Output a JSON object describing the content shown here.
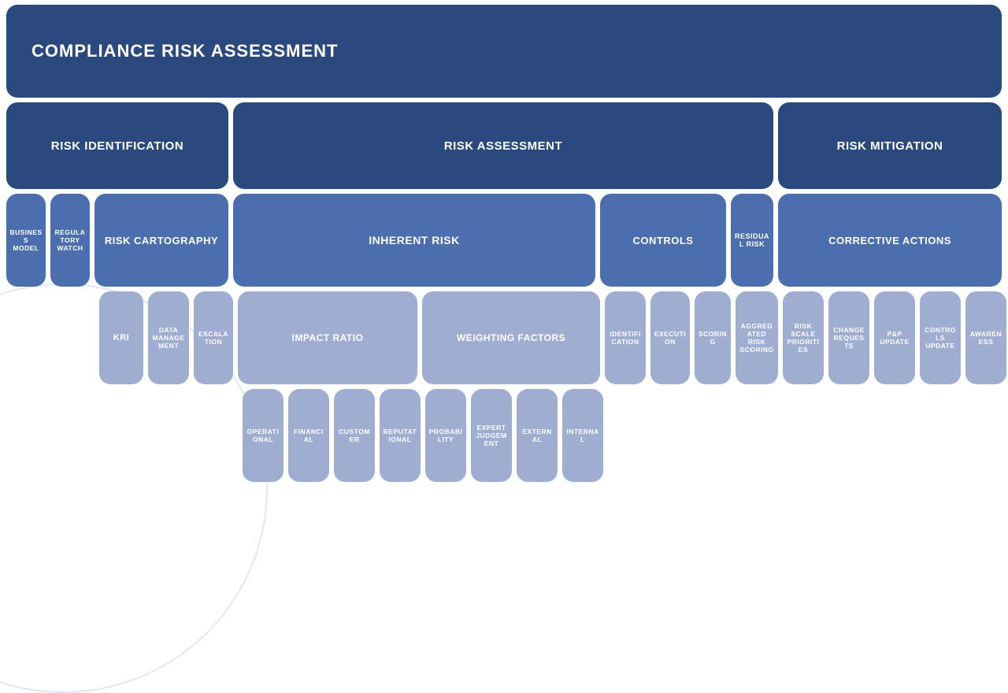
{
  "colors": {
    "dark": "#2a4a7f",
    "mid": "#4a6eae",
    "light": "#9fadd1",
    "text": "#ffffff"
  },
  "title": "COMPLIANCE RISK ASSESSMENT",
  "level1": {
    "risk_identification": "RISK IDENTIFICATION",
    "risk_assessment": "RISK ASSESSMENT",
    "risk_mitigation": "RISK MITIGATION"
  },
  "level2": {
    "business_model": "BUSINESS MODEL",
    "regulatory_watch": "REGULATORY WATCH",
    "risk_cartography": "RISK CARTOGRAPHY",
    "inherent_risk": "INHERENT RISK",
    "controls": "CONTROLS",
    "residual_risk": "RESIDUAL RISK",
    "corrective_actions": "CORRECTIVE ACTIONS"
  },
  "level3": {
    "kri": "KRI",
    "data_management": "DATA MANAGEMENT",
    "escalation": "ESCALATION",
    "impact_ratio": "IMPACT RATIO",
    "weighting_factors": "WEIGHTING FACTORS",
    "identification": "IDENTIFICATION",
    "execution": "EXECUTION",
    "scoring": "SCORING",
    "aggregated_risk_scoring": "AGGREGATED RISK SCORING",
    "risk_scale_priorities": "RISK SCALE PRIORITIES",
    "change_requests": "CHANGE REQUESTS",
    "pp_update": "P&P UPDATE",
    "controls_update": "CONTROLS UPDATE",
    "awareness": "AWARENESS"
  },
  "level4": {
    "operational": "OPERATIONAL",
    "financial": "FINANCIAL",
    "customer": "CUSTOMER",
    "reputational": "REPUTATIONAL",
    "probability": "PROBABILITY",
    "expert_judgement": "EXPERT JUDGEMENT",
    "external": "EXTERNAL",
    "internal": "INTERNAL"
  },
  "widths": {
    "title": 1264,
    "l1_id": 282,
    "l1_assess": 686,
    "l1_mit": 284,
    "l2_bm": 50,
    "l2_rw": 50,
    "l2_rc": 170,
    "l2_ir": 460,
    "l2_ct": 160,
    "l2_rr": 54,
    "l2_ca": 284,
    "l3_gap1": 112,
    "l3_kri": 56,
    "l3_dm": 52,
    "l3_esc": 50,
    "l3_ir": 228,
    "l3_wf": 226,
    "l3_id": 52,
    "l3_ex": 50,
    "l3_sc": 46,
    "l3_agg": 54,
    "l3_rsp": 52,
    "l3_cr": 52,
    "l3_pp": 52,
    "l3_cu": 52,
    "l3_aw": 52,
    "l4_gap": 294,
    "l4_box": 52
  }
}
